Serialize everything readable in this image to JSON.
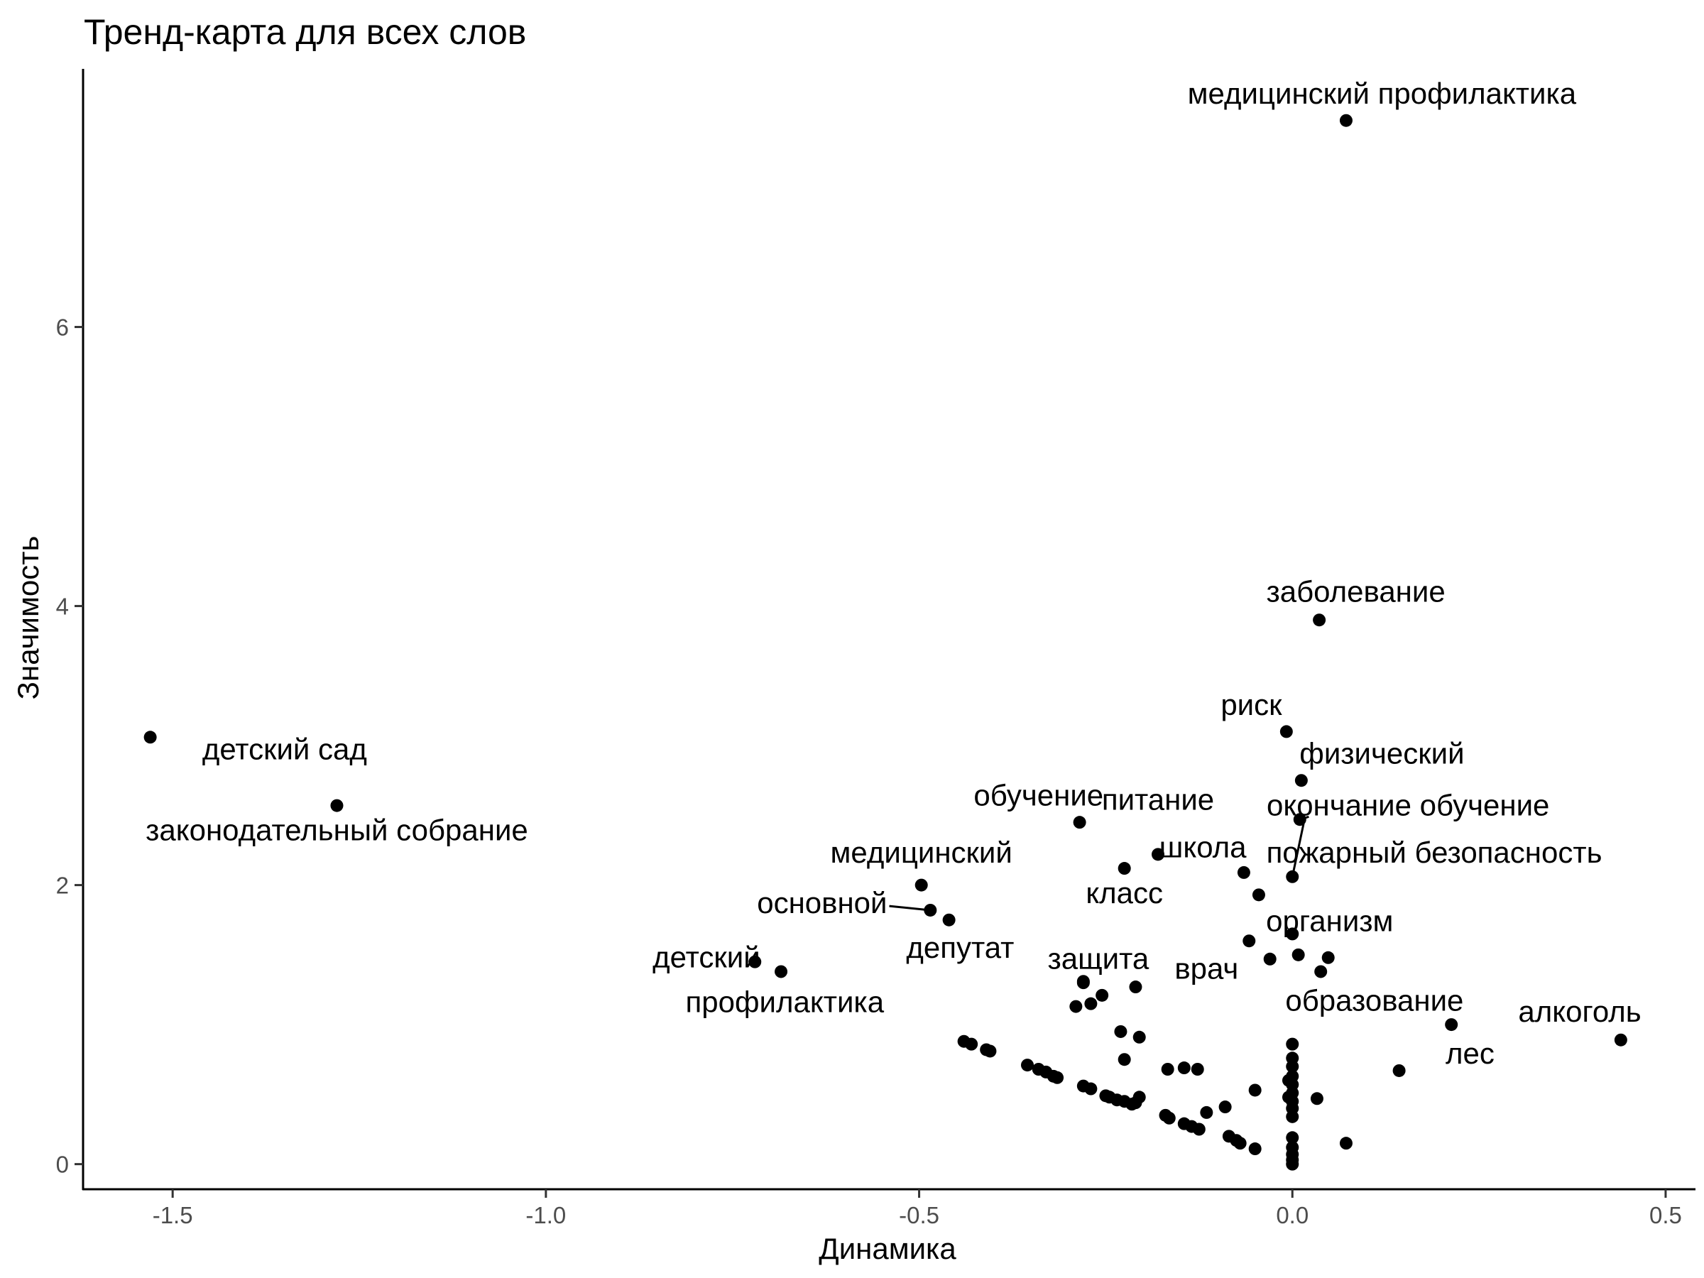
{
  "chart_data": {
    "type": "scatter",
    "title": "Тренд-карта для всех слов",
    "xlabel": "Динамика",
    "ylabel": "Значимость",
    "xlim": [
      -1.62,
      0.54
    ],
    "ylim": [
      -0.18,
      7.85
    ],
    "x_ticks": [
      {
        "value": -1.5,
        "label": "-1.5"
      },
      {
        "value": -1.0,
        "label": "-1.0"
      },
      {
        "value": -0.5,
        "label": "-0.5"
      },
      {
        "value": 0.0,
        "label": "0.0"
      },
      {
        "value": 0.5,
        "label": "0.5"
      }
    ],
    "y_ticks": [
      {
        "value": 0,
        "label": "0"
      },
      {
        "value": 2,
        "label": "2"
      },
      {
        "value": 4,
        "label": "4"
      },
      {
        "value": 6,
        "label": "6"
      }
    ],
    "grid": false,
    "point_color": "#000000",
    "labeled_points": [
      {
        "label": "медицинский профилактика",
        "x": 0.072,
        "y": 7.48,
        "lx": 0.12,
        "ly": 7.6,
        "anchor": "middle"
      },
      {
        "label": "заболевание",
        "x": 0.036,
        "y": 3.9,
        "lx": 0.085,
        "ly": 4.03,
        "anchor": "middle"
      },
      {
        "label": "риск",
        "x": -0.008,
        "y": 3.1,
        "lx": -0.055,
        "ly": 3.22,
        "anchor": "middle"
      },
      {
        "label": "физический",
        "x": 0.012,
        "y": 2.75,
        "lx": 0.12,
        "ly": 2.87,
        "anchor": "middle"
      },
      {
        "label": "детский сад",
        "x": -1.53,
        "y": 3.06,
        "lx": -1.35,
        "ly": 2.9,
        "anchor": "middle"
      },
      {
        "label": "законодательный собрание",
        "x": -1.28,
        "y": 2.57,
        "lx": -1.28,
        "ly": 2.32,
        "anchor": "middle"
      },
      {
        "label": "обучение",
        "x": -0.285,
        "y": 2.45,
        "lx": -0.34,
        "ly": 2.57,
        "anchor": "middle"
      },
      {
        "label": "питание",
        "x": -0.18,
        "y": 2.22,
        "lx": -0.18,
        "ly": 2.54,
        "anchor": "middle"
      },
      {
        "label": "окончание обучение",
        "x": 0.01,
        "y": 2.47,
        "lx": 0.155,
        "ly": 2.5,
        "anchor": "middle",
        "leader": [
          0.022,
          2.49
        ]
      },
      {
        "label": "школа",
        "x": -0.065,
        "y": 2.09,
        "lx": -0.12,
        "ly": 2.2,
        "anchor": "middle"
      },
      {
        "label": "пожарный безопасность",
        "x": 0.0,
        "y": 2.06,
        "lx": 0.19,
        "ly": 2.16,
        "anchor": "middle",
        "leader": [
          0.015,
          2.44
        ]
      },
      {
        "label": "медицинский",
        "x": -0.497,
        "y": 2.0,
        "lx": -0.497,
        "ly": 2.16,
        "anchor": "middle"
      },
      {
        "label": "класс",
        "x": -0.225,
        "y": 2.12,
        "lx": -0.225,
        "ly": 1.87,
        "anchor": "middle"
      },
      {
        "label": "организм",
        "x": -0.045,
        "y": 1.93,
        "lx": 0.05,
        "ly": 1.67,
        "anchor": "middle"
      },
      {
        "label": "основной",
        "x": -0.485,
        "y": 1.82,
        "lx": -0.63,
        "ly": 1.8,
        "anchor": "middle",
        "leader": [
          -0.54,
          1.85
        ]
      },
      {
        "label": "депутат",
        "x": -0.46,
        "y": 1.75,
        "lx": -0.445,
        "ly": 1.48,
        "anchor": "middle"
      },
      {
        "label": "детский",
        "x": -0.72,
        "y": 1.45,
        "lx": -0.785,
        "ly": 1.41,
        "anchor": "middle"
      },
      {
        "label": "профилактика",
        "x": -0.685,
        "y": 1.38,
        "lx": -0.68,
        "ly": 1.09,
        "anchor": "middle"
      },
      {
        "label": "защита",
        "x": -0.28,
        "y": 1.3,
        "lx": -0.26,
        "ly": 1.4,
        "anchor": "middle"
      },
      {
        "label": "врач",
        "x": -0.03,
        "y": 1.47,
        "lx": -0.115,
        "ly": 1.33,
        "anchor": "middle"
      },
      {
        "label": "образование",
        "x": 0.0,
        "y": 1.65,
        "lx": 0.11,
        "ly": 1.1,
        "anchor": "middle"
      },
      {
        "label": "лес",
        "x": 0.213,
        "y": 1.0,
        "lx": 0.238,
        "ly": 0.72,
        "anchor": "middle"
      },
      {
        "label": "алкоголь",
        "x": 0.44,
        "y": 0.89,
        "lx": 0.385,
        "ly": 1.02,
        "anchor": "middle"
      }
    ],
    "points": [
      [
        0.048,
        1.48
      ],
      [
        0.038,
        1.38
      ],
      [
        0.008,
        1.5
      ],
      [
        -0.058,
        1.6
      ],
      [
        -0.21,
        1.27
      ],
      [
        -0.28,
        1.31
      ],
      [
        -0.255,
        1.21
      ],
      [
        -0.27,
        1.15
      ],
      [
        -0.29,
        1.13
      ],
      [
        -0.23,
        0.95
      ],
      [
        -0.205,
        0.91
      ],
      [
        -0.225,
        0.75
      ],
      [
        -0.44,
        0.88
      ],
      [
        -0.43,
        0.86
      ],
      [
        -0.41,
        0.82
      ],
      [
        -0.405,
        0.81
      ],
      [
        -0.355,
        0.71
      ],
      [
        -0.34,
        0.68
      ],
      [
        -0.33,
        0.66
      ],
      [
        -0.32,
        0.63
      ],
      [
        -0.315,
        0.62
      ],
      [
        -0.28,
        0.56
      ],
      [
        -0.27,
        0.54
      ],
      [
        -0.25,
        0.49
      ],
      [
        -0.245,
        0.48
      ],
      [
        -0.235,
        0.46
      ],
      [
        -0.225,
        0.45
      ],
      [
        -0.215,
        0.43
      ],
      [
        -0.21,
        0.44
      ],
      [
        -0.205,
        0.48
      ],
      [
        -0.17,
        0.35
      ],
      [
        -0.165,
        0.33
      ],
      [
        -0.145,
        0.29
      ],
      [
        -0.135,
        0.27
      ],
      [
        -0.125,
        0.25
      ],
      [
        -0.115,
        0.37
      ],
      [
        -0.09,
        0.41
      ],
      [
        -0.085,
        0.2
      ],
      [
        -0.075,
        0.17
      ],
      [
        -0.07,
        0.15
      ],
      [
        -0.05,
        0.11
      ],
      [
        -0.05,
        0.53
      ],
      [
        -0.167,
        0.68
      ],
      [
        -0.145,
        0.69
      ],
      [
        -0.127,
        0.68
      ],
      [
        0.0,
        0.86
      ],
      [
        0.0,
        0.76
      ],
      [
        0.0,
        0.7
      ],
      [
        0.0,
        0.63
      ],
      [
        0.0,
        0.57
      ],
      [
        0.0,
        0.51
      ],
      [
        0.0,
        0.45
      ],
      [
        0.0,
        0.4
      ],
      [
        0.0,
        0.34
      ],
      [
        0.0,
        0.19
      ],
      [
        0.0,
        0.12
      ],
      [
        0.0,
        0.07
      ],
      [
        0.0,
        0.03
      ],
      [
        0.0,
        0.0
      ],
      [
        -0.005,
        0.6
      ],
      [
        -0.005,
        0.48
      ],
      [
        0.033,
        0.47
      ],
      [
        0.072,
        0.15
      ],
      [
        0.143,
        0.67
      ]
    ]
  }
}
